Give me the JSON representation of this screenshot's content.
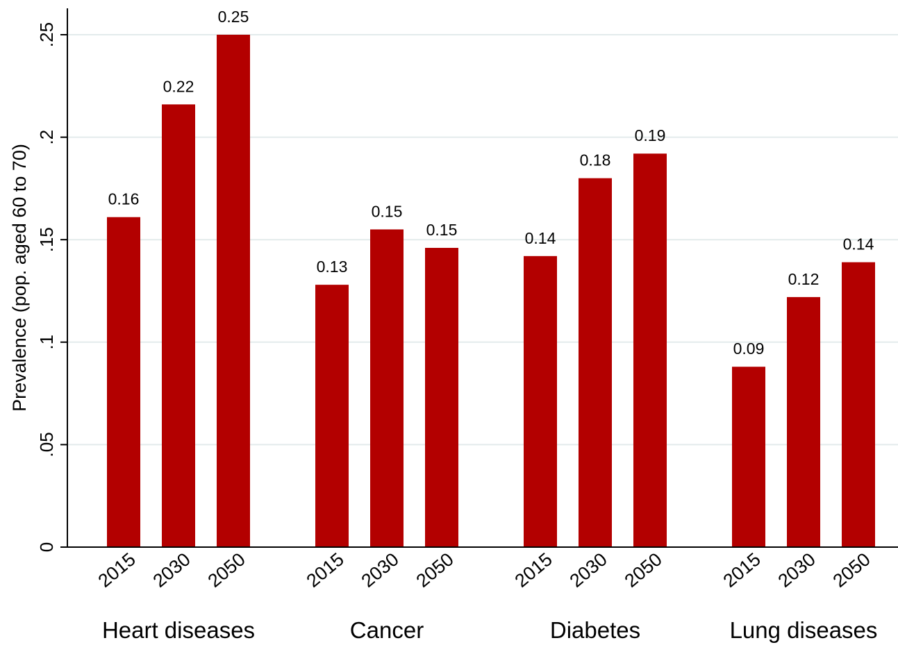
{
  "chart_data": {
    "type": "bar",
    "ylabel": "Prevalence (pop. aged 60 to 70)",
    "ylim": [
      0,
      0.25
    ],
    "yticks": [
      {
        "value": 0,
        "label": "0"
      },
      {
        "value": 0.05,
        "label": ".05"
      },
      {
        "value": 0.1,
        "label": ".1"
      },
      {
        "value": 0.15,
        "label": ".15"
      },
      {
        "value": 0.2,
        "label": ".2"
      },
      {
        "value": 0.25,
        "label": ".25"
      }
    ],
    "grid": true,
    "legend": "none",
    "colors": {
      "bar": "#b30000",
      "grid": "#e3ebec",
      "axis": "#000000"
    },
    "groups": [
      {
        "name": "Heart diseases",
        "bars": [
          {
            "year": "2015",
            "value": 0.161,
            "label": "0.16"
          },
          {
            "year": "2030",
            "value": 0.216,
            "label": "0.22"
          },
          {
            "year": "2050",
            "value": 0.25,
            "label": "0.25"
          }
        ]
      },
      {
        "name": "Cancer",
        "bars": [
          {
            "year": "2015",
            "value": 0.128,
            "label": "0.13"
          },
          {
            "year": "2030",
            "value": 0.155,
            "label": "0.15"
          },
          {
            "year": "2050",
            "value": 0.146,
            "label": "0.15"
          }
        ]
      },
      {
        "name": "Diabetes",
        "bars": [
          {
            "year": "2015",
            "value": 0.142,
            "label": "0.14"
          },
          {
            "year": "2030",
            "value": 0.18,
            "label": "0.18"
          },
          {
            "year": "2050",
            "value": 0.192,
            "label": "0.19"
          }
        ]
      },
      {
        "name": "Lung diseases",
        "bars": [
          {
            "year": "2015",
            "value": 0.088,
            "label": "0.09"
          },
          {
            "year": "2030",
            "value": 0.122,
            "label": "0.12"
          },
          {
            "year": "2050",
            "value": 0.139,
            "label": "0.14"
          }
        ]
      }
    ]
  }
}
